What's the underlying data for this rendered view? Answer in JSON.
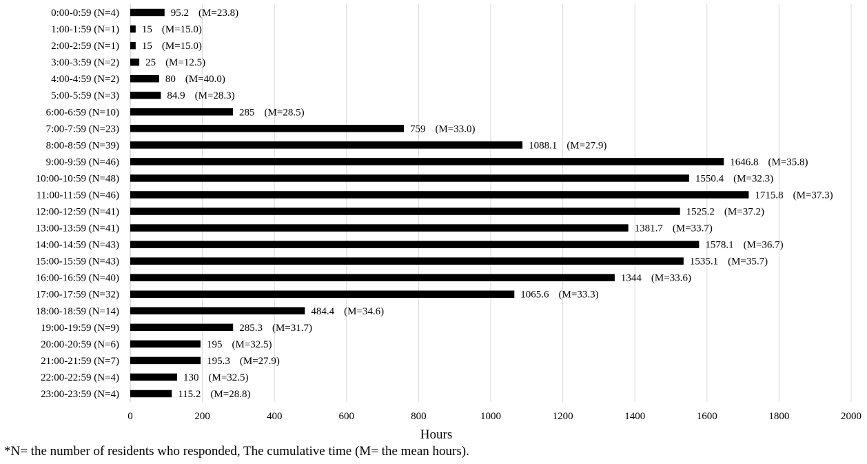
{
  "chart_data": {
    "type": "bar",
    "orientation": "horizontal",
    "xlabel": "Hours",
    "xlim": [
      0,
      2000
    ],
    "xticks": [
      0,
      200,
      400,
      600,
      800,
      1000,
      1200,
      1400,
      1600,
      1800,
      2000
    ],
    "grid": "vertical",
    "bar_color": "#000000",
    "categories": [
      "0:00-0:59 (N=4)",
      "1:00-1:59 (N=1)",
      "2:00-2:59 (N=1)",
      "3:00-3:59 (N=2)",
      "4:00-4:59 (N=2)",
      "5:00-5:59 (N=3)",
      "6:00-6:59 (N=10)",
      "7:00-7:59 (N=23)",
      "8:00-8:59 (N=39)",
      "9:00-9:59 (N=46)",
      "10:00-10:59 (N=48)",
      "11:00-11:59 (N=46)",
      "12:00-12:59 (N=41)",
      "13:00-13:59 (N=41)",
      "14:00-14:59 (N=43)",
      "15:00-15:59 (N=43)",
      "16:00-16:59 (N=40)",
      "17:00-17:59 (N=32)",
      "18:00-18:59 (N=14)",
      "19:00-19:59 (N=9)",
      "20:00-20:59 (N=6)",
      "21:00-21:59 (N=7)",
      "22:00-22:59 (N=4)",
      "23:00-23:59 (N=4)"
    ],
    "values": [
      95.2,
      15,
      15,
      25,
      80,
      84.9,
      285,
      759,
      1088.1,
      1646.8,
      1550.4,
      1715.8,
      1525.2,
      1381.7,
      1578.1,
      1535.1,
      1344,
      1065.6,
      484.4,
      285.3,
      195,
      195.3,
      130,
      115.2
    ],
    "value_labels": [
      "95.2",
      "15",
      "15",
      "25",
      "80",
      "84.9",
      "285",
      "759",
      "1088.1",
      "1646.8",
      "1550.4",
      "1715.8",
      "1525.2",
      "1381.7",
      "1578.1",
      "1535.1",
      "1344",
      "1065.6",
      "484.4",
      "285.3",
      "195",
      "195.3",
      "130",
      "115.2"
    ],
    "mean_labels": [
      "(M=23.8)",
      "(M=15.0)",
      "(M=15.0)",
      "(M=12.5)",
      "(M=40.0)",
      "(M=28.3)",
      "(M=28.5)",
      "(M=33.0)",
      "(M=27.9)",
      "(M=35.8)",
      "(M=32.3)",
      "(M=37.3)",
      "(M=37.2)",
      "(M=33.7)",
      "(M=36.7)",
      "(M=35.7)",
      "(M=33.6)",
      "(M=33.3)",
      "(M=34.6)",
      "(M=31.7)",
      "(M=32.5)",
      "(M=27.9)",
      "(M=32.5)",
      "(M=28.8)"
    ]
  },
  "footnote": "*N= the number of residents who responded, The cumulative time (M= the mean hours)."
}
